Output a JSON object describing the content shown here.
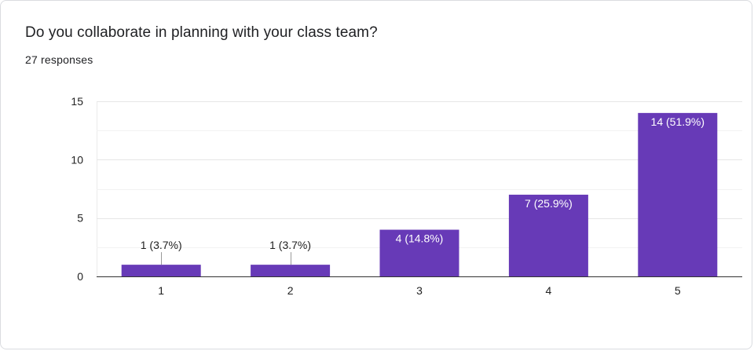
{
  "question": {
    "title": "Do you collaborate in planning with your class team?",
    "responses": "27 responses"
  },
  "colors": {
    "bar": "#673ab7",
    "grid": "#ebebeb",
    "axis": "#333333",
    "text": "#222222",
    "label_inside": "#ffffff"
  },
  "chart_data": {
    "type": "bar",
    "categories": [
      "1",
      "2",
      "3",
      "4",
      "5"
    ],
    "values": [
      1,
      1,
      4,
      7,
      14
    ],
    "data_labels": [
      "1 (3.7%)",
      "1 (3.7%)",
      "4 (14.8%)",
      "7 (25.9%)",
      "14 (51.9%)"
    ],
    "ylim": [
      0,
      15
    ],
    "yticks": [
      0,
      5,
      10,
      15
    ],
    "grid": true,
    "xlabel": "",
    "ylabel": ""
  }
}
